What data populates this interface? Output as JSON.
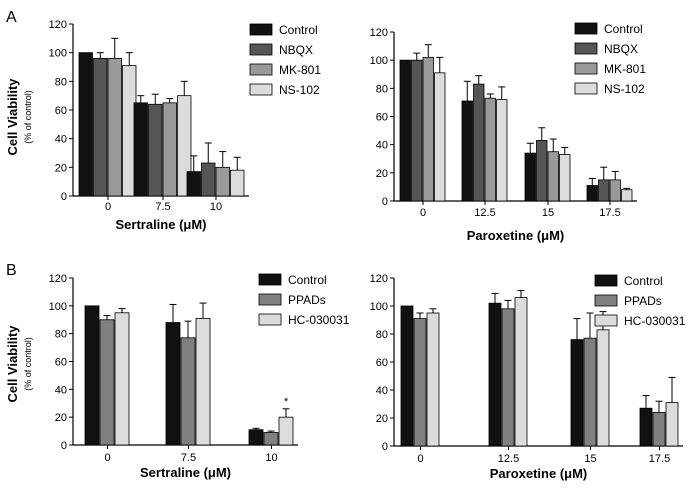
{
  "panels": [
    {
      "label": "A"
    },
    {
      "label": "B"
    }
  ],
  "y_axis_label": "Cell Viability",
  "y_axis_sublabel": "(% of control)",
  "chart_data": [
    {
      "type": "bar",
      "panel": "A",
      "categories": [
        "0",
        "7.5",
        "10"
      ],
      "xlabel": "Sertraline (μM)",
      "ylabel": "Cell Viability (% of control)",
      "ylim": [
        0,
        120
      ],
      "yticks": [
        "0",
        "20",
        "40",
        "60",
        "80",
        "100",
        "120"
      ],
      "legend_position": "top-right",
      "series": [
        {
          "name": "Control",
          "color": "#111111",
          "values": [
            100,
            65,
            17
          ],
          "errors": [
            0,
            5,
            11
          ]
        },
        {
          "name": "NBQX",
          "color": "#555555",
          "values": [
            96,
            64,
            23
          ],
          "errors": [
            4,
            7,
            14
          ]
        },
        {
          "name": "MK-801",
          "color": "#9a9a9a",
          "values": [
            96,
            65,
            20
          ],
          "errors": [
            14,
            3,
            11
          ]
        },
        {
          "name": "NS-102",
          "color": "#dcdcdc",
          "values": [
            91,
            70,
            18
          ],
          "errors": [
            9,
            10,
            9
          ]
        }
      ]
    },
    {
      "type": "bar",
      "panel": "A",
      "categories": [
        "0",
        "12.5",
        "15",
        "17.5"
      ],
      "xlabel": "Paroxetine (μM)",
      "ylabel": "",
      "ylim": [
        0,
        120
      ],
      "yticks": [
        "0",
        "20",
        "40",
        "60",
        "80",
        "100",
        "120"
      ],
      "legend_position": "top-right",
      "series": [
        {
          "name": "Control",
          "color": "#111111",
          "values": [
            100,
            71,
            34,
            11
          ],
          "errors": [
            0,
            14,
            7,
            5
          ]
        },
        {
          "name": "NBQX",
          "color": "#555555",
          "values": [
            100,
            83,
            43,
            15
          ],
          "errors": [
            5,
            6,
            9,
            9
          ]
        },
        {
          "name": "MK-801",
          "color": "#9a9a9a",
          "values": [
            102,
            73,
            35,
            15
          ],
          "errors": [
            9,
            3,
            9,
            6
          ]
        },
        {
          "name": "NS-102",
          "color": "#dcdcdc",
          "values": [
            91,
            72,
            33,
            8
          ],
          "errors": [
            11,
            9,
            5,
            1
          ]
        }
      ]
    },
    {
      "type": "bar",
      "panel": "B",
      "categories": [
        "0",
        "7.5",
        "10"
      ],
      "xlabel": "Sertraline (μM)",
      "ylabel": "Cell Viability (% of control)",
      "ylim": [
        0,
        120
      ],
      "yticks": [
        "0",
        "20",
        "40",
        "60",
        "80",
        "100",
        "120"
      ],
      "legend_position": "top-right",
      "annotations": [
        {
          "text": "*",
          "category": "10",
          "series": "HC-030031"
        }
      ],
      "series": [
        {
          "name": "Control",
          "color": "#111111",
          "values": [
            100,
            88,
            11
          ],
          "errors": [
            0,
            13,
            1
          ]
        },
        {
          "name": "PPADs",
          "color": "#808080",
          "values": [
            90,
            77,
            9
          ],
          "errors": [
            3,
            12,
            1
          ]
        },
        {
          "name": "HC-030031",
          "color": "#dcdcdc",
          "values": [
            95,
            91,
            20
          ],
          "errors": [
            3,
            11,
            6
          ]
        }
      ]
    },
    {
      "type": "bar",
      "panel": "B",
      "categories": [
        "0",
        "12.5",
        "15",
        "17.5"
      ],
      "xlabel": "Paroxetine (μM)",
      "ylabel": "",
      "ylim": [
        0,
        120
      ],
      "yticks": [
        "0",
        "20",
        "40",
        "60",
        "80",
        "100",
        "120"
      ],
      "legend_position": "top-right",
      "series": [
        {
          "name": "Control",
          "color": "#111111",
          "values": [
            100,
            102,
            76,
            27
          ],
          "errors": [
            0,
            7,
            15,
            9
          ]
        },
        {
          "name": "PPADs",
          "color": "#808080",
          "values": [
            91,
            98,
            77,
            24
          ],
          "errors": [
            4,
            6,
            18,
            8
          ]
        },
        {
          "name": "HC-030031",
          "color": "#dcdcdc",
          "values": [
            95,
            106,
            83,
            31
          ],
          "errors": [
            3,
            5,
            13,
            18
          ]
        }
      ]
    }
  ]
}
